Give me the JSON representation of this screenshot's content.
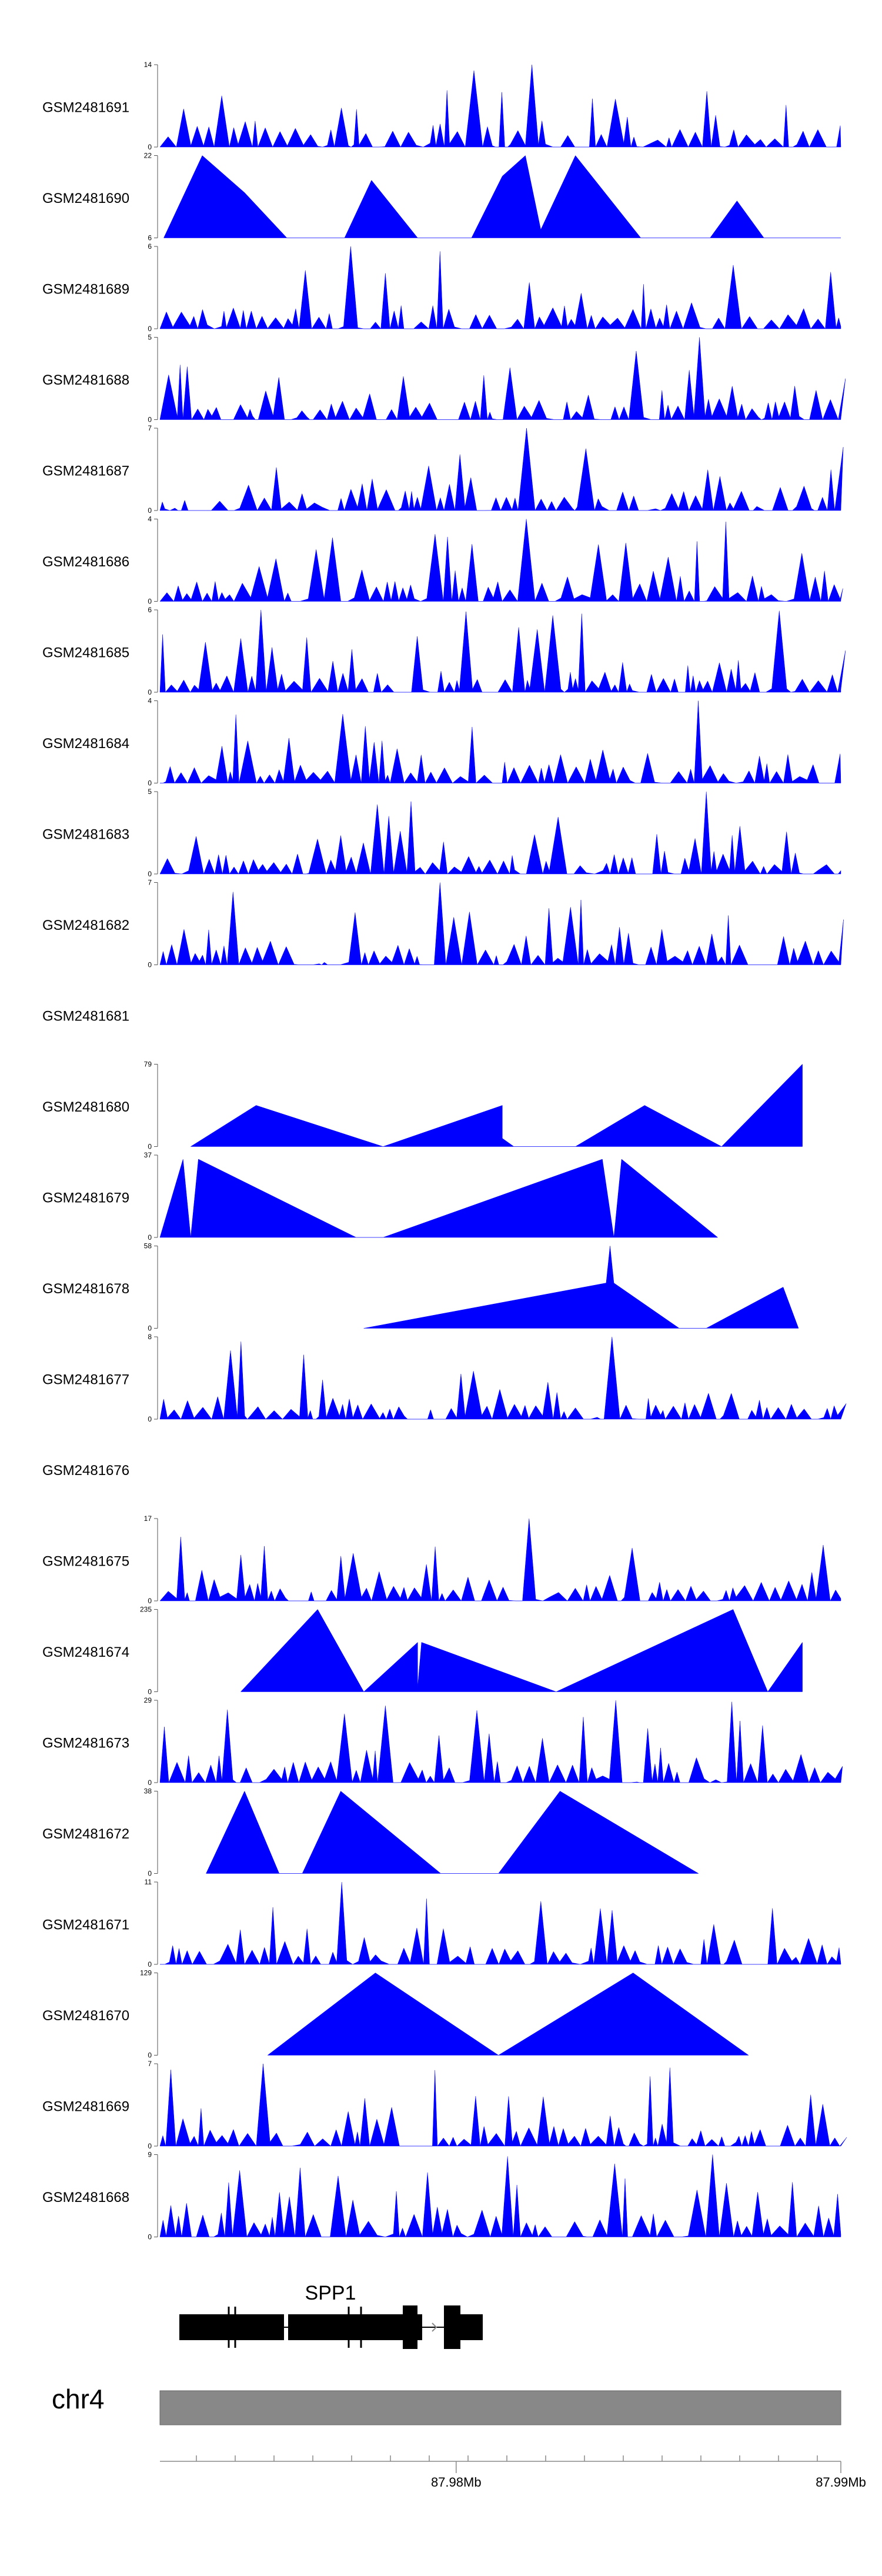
{
  "chart_data": {
    "type": "area",
    "region": "chr4",
    "fill_color": "#0000ff",
    "x_range": [
      87.9723,
      87.99
    ],
    "tracks": [
      {
        "name": "GSM2481691",
        "ymax": "14",
        "ymin": "0",
        "hasData": true,
        "seed": 11,
        "spiky": true
      },
      {
        "name": "GSM2481690",
        "ymax": "22",
        "ymin": "6",
        "hasData": true,
        "seed": 23,
        "spiky": false,
        "points": [
          [
            87.9724,
            0
          ],
          [
            87.9734,
            1
          ],
          [
            87.9745,
            0.55
          ],
          [
            87.9756,
            0
          ],
          [
            87.9765,
            0
          ],
          [
            87.9771,
            0
          ],
          [
            87.9778,
            0.7
          ],
          [
            87.979,
            0
          ],
          [
            87.9804,
            0
          ],
          [
            87.9812,
            0.75
          ],
          [
            87.9818,
            1
          ],
          [
            87.9822,
            0.1
          ],
          [
            87.9831,
            1
          ],
          [
            87.9848,
            0
          ],
          [
            87.9849,
            0
          ],
          [
            87.9866,
            0
          ],
          [
            87.9873,
            0.45
          ],
          [
            87.988,
            0
          ],
          [
            87.99,
            0
          ]
        ]
      },
      {
        "name": "GSM2481689",
        "ymax": "6",
        "ymin": "0",
        "hasData": true,
        "seed": 37,
        "spiky": true
      },
      {
        "name": "GSM2481688",
        "ymax": "5",
        "ymin": "0",
        "hasData": true,
        "seed": 41,
        "spiky": true
      },
      {
        "name": "GSM2481687",
        "ymax": "7",
        "ymin": "0",
        "hasData": true,
        "seed": 53,
        "spiky": true
      },
      {
        "name": "GSM2481686",
        "ymax": "4",
        "ymin": "0",
        "hasData": true,
        "seed": 67,
        "spiky": true
      },
      {
        "name": "GSM2481685",
        "ymax": "6",
        "ymin": "0",
        "hasData": true,
        "seed": 71,
        "spiky": true
      },
      {
        "name": "GSM2481684",
        "ymax": "4",
        "ymin": "0",
        "hasData": true,
        "seed": 83,
        "spiky": true
      },
      {
        "name": "GSM2481683",
        "ymax": "5",
        "ymin": "0",
        "hasData": true,
        "seed": 97,
        "spiky": true
      },
      {
        "name": "GSM2481682",
        "ymax": "7",
        "ymin": "0",
        "hasData": true,
        "seed": 101,
        "spiky": true
      },
      {
        "name": "GSM2481681",
        "ymax": "",
        "ymin": "",
        "hasData": false
      },
      {
        "name": "GSM2481680",
        "ymax": "79",
        "ymin": "0",
        "hasData": true,
        "seed": 0,
        "spiky": false,
        "points": [
          [
            87.9731,
            0
          ],
          [
            87.9748,
            0.5
          ],
          [
            87.9781,
            0
          ],
          [
            87.9812,
            0.5
          ],
          [
            87.9812,
            0.1
          ],
          [
            87.9815,
            0
          ],
          [
            87.9831,
            0
          ],
          [
            87.9849,
            0.5
          ],
          [
            87.9869,
            0
          ],
          [
            87.989,
            1
          ]
        ]
      },
      {
        "name": "GSM2481679",
        "ymax": "37",
        "ymin": "0",
        "hasData": true,
        "seed": 0,
        "spiky": false,
        "points": [
          [
            87.9723,
            0
          ],
          [
            87.9729,
            0.95
          ],
          [
            87.9731,
            0
          ],
          [
            87.9733,
            0.95
          ],
          [
            87.9774,
            0
          ],
          [
            87.9781,
            0
          ],
          [
            87.9838,
            0.95
          ],
          [
            87.9841,
            0
          ],
          [
            87.9843,
            0.95
          ],
          [
            87.9868,
            0
          ]
        ]
      },
      {
        "name": "GSM2481678",
        "ymax": "58",
        "ymin": "0",
        "hasData": true,
        "seed": 0,
        "spiky": false,
        "points": [
          [
            87.9776,
            0
          ],
          [
            87.9839,
            0.55
          ],
          [
            87.984,
            1
          ],
          [
            87.9841,
            0.55
          ],
          [
            87.9858,
            0
          ],
          [
            87.9865,
            0
          ],
          [
            87.9885,
            0.5
          ],
          [
            87.9889,
            0
          ]
        ]
      },
      {
        "name": "GSM2481677",
        "ymax": "8",
        "ymin": "0",
        "hasData": true,
        "seed": 131,
        "spiky": true
      },
      {
        "name": "GSM2481676",
        "ymax": "",
        "ymin": "",
        "hasData": false
      },
      {
        "name": "GSM2481675",
        "ymax": "17",
        "ymin": "0",
        "hasData": true,
        "seed": 151,
        "spiky": true
      },
      {
        "name": "GSM2481674",
        "ymax": "235",
        "ymin": "0",
        "hasData": true,
        "seed": 0,
        "spiky": false,
        "points": [
          [
            87.9744,
            0
          ],
          [
            87.9764,
            1
          ],
          [
            87.9776,
            0
          ],
          [
            87.979,
            0.6
          ],
          [
            87.979,
            0.05
          ],
          [
            87.9791,
            0.6
          ],
          [
            87.9826,
            0
          ],
          [
            87.9872,
            1
          ],
          [
            87.9881,
            0
          ],
          [
            87.989,
            0.6
          ],
          [
            87.989,
            0
          ]
        ]
      },
      {
        "name": "GSM2481673",
        "ymax": "29",
        "ymin": "0",
        "hasData": true,
        "seed": 173,
        "spiky": true
      },
      {
        "name": "GSM2481672",
        "ymax": "38",
        "ymin": "0",
        "hasData": true,
        "seed": 0,
        "spiky": false,
        "points": [
          [
            87.9735,
            0
          ],
          [
            87.9745,
            1
          ],
          [
            87.9754,
            0
          ],
          [
            87.976,
            0
          ],
          [
            87.977,
            1
          ],
          [
            87.9796,
            0
          ],
          [
            87.9811,
            0
          ],
          [
            87.9827,
            1
          ],
          [
            87.9863,
            0
          ]
        ]
      },
      {
        "name": "GSM2481671",
        "ymax": "11",
        "ymin": "0",
        "hasData": true,
        "seed": 191,
        "spiky": true
      },
      {
        "name": "GSM2481670",
        "ymax": "129",
        "ymin": "0",
        "hasData": true,
        "seed": 0,
        "spiky": false,
        "points": [
          [
            87.9751,
            0
          ],
          [
            87.9779,
            1
          ],
          [
            87.9811,
            0
          ],
          [
            87.9846,
            1
          ],
          [
            87.9876,
            0
          ]
        ]
      },
      {
        "name": "GSM2481669",
        "ymax": "7",
        "ymin": "0",
        "hasData": true,
        "seed": 211,
        "spiky": true
      },
      {
        "name": "GSM2481668",
        "ymax": "9",
        "ymin": "0",
        "hasData": true,
        "seed": 223,
        "spiky": true
      }
    ],
    "gene": {
      "name": "SPP1",
      "strand": "+",
      "start": 87.9729,
      "end": 87.9808
    },
    "axis": {
      "ticks": [
        "87.98Mb",
        "87.99Mb"
      ],
      "tick_values": [
        87.98,
        87.99
      ]
    },
    "chromosome": "chr4"
  }
}
